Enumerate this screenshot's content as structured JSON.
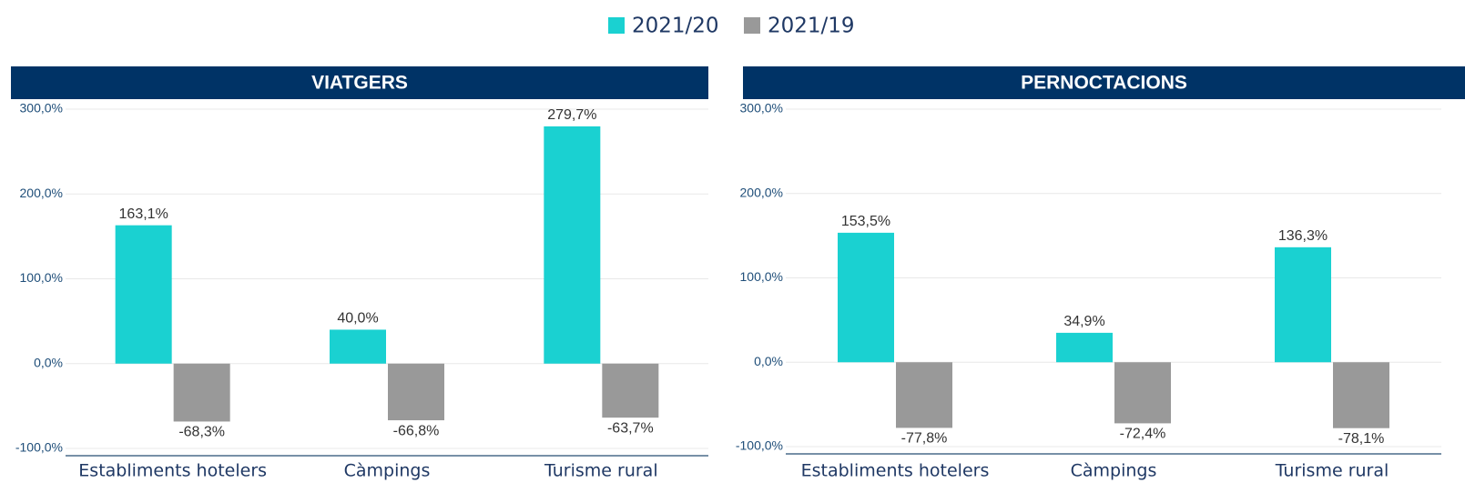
{
  "chart_data": [
    {
      "type": "bar",
      "title": "VIATGERS",
      "categories": [
        "Establiments hotelers",
        "Càmpings",
        "Turisme rural"
      ],
      "series": [
        {
          "name": "2021/20",
          "color": "#1ad1d1",
          "values": [
            163.1,
            40.0,
            279.7
          ],
          "value_labels": [
            "163,1%",
            "40,0%",
            "279,7%"
          ]
        },
        {
          "name": "2021/19",
          "color": "#999999",
          "values": [
            -68.3,
            -66.8,
            -63.7
          ],
          "value_labels": [
            "-68,3%",
            "-66,8%",
            "-63,7%"
          ]
        }
      ],
      "ylim": [
        -100,
        300
      ],
      "yticks": [
        {
          "value": -100,
          "label": "-100,0%"
        },
        {
          "value": 0,
          "label": "0,0%"
        },
        {
          "value": 100,
          "label": "100,0%"
        },
        {
          "value": 200,
          "label": "200,0%"
        },
        {
          "value": 300,
          "label": "300,0%"
        }
      ],
      "grid": true
    },
    {
      "type": "bar",
      "title": "PERNOCTACIONS",
      "categories": [
        "Establiments hotelers",
        "Càmpings",
        "Turisme rural"
      ],
      "series": [
        {
          "color": "#1ad1d1",
          "values": [
            153.5,
            34.9,
            136.3
          ],
          "value_labels": [
            "153,5%",
            "34,9%",
            "136,3%"
          ]
        },
        {
          "color": "#999999",
          "values": [
            -77.8,
            -72.4,
            -78.1
          ],
          "value_labels": [
            "-77,8%",
            "-72,4%",
            "-78,1%"
          ]
        }
      ],
      "ylim": [
        -100,
        300
      ],
      "yticks": [
        {
          "value": -100,
          "label": "-100,0%"
        },
        {
          "value": 0,
          "label": "0,0%"
        },
        {
          "value": 100,
          "label": "100,0%"
        },
        {
          "value": 200,
          "label": "200,0%"
        },
        {
          "value": 300,
          "label": "300,0%"
        }
      ],
      "grid": true
    }
  ]
}
